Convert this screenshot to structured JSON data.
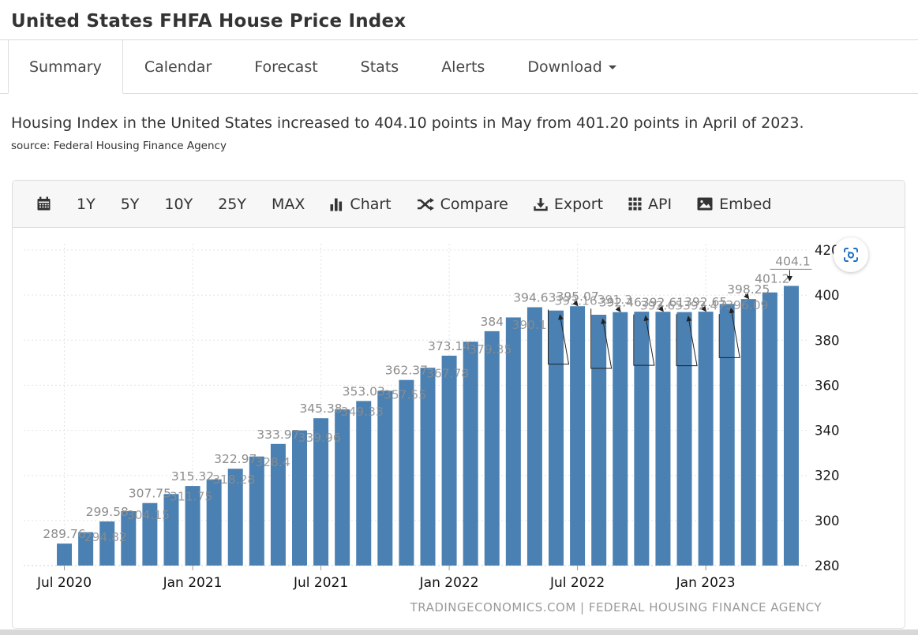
{
  "header": {
    "title": "United States FHFA House Price Index"
  },
  "tabs": {
    "items": [
      {
        "label": "Summary",
        "active": true
      },
      {
        "label": "Calendar"
      },
      {
        "label": "Forecast"
      },
      {
        "label": "Stats"
      },
      {
        "label": "Alerts"
      },
      {
        "label": "Download",
        "caret": true
      }
    ]
  },
  "summary": {
    "description": "Housing Index in the United States increased to 404.10 points in May from 401.20 points in April of 2023.",
    "source_label": "source:",
    "source_name": "Federal Housing Finance Agency"
  },
  "toolbar": {
    "items": [
      {
        "name": "calendar",
        "icon": "calendar-icon",
        "label": ""
      },
      {
        "name": "range-1y",
        "label": "1Y"
      },
      {
        "name": "range-5y",
        "label": "5Y"
      },
      {
        "name": "range-10y",
        "label": "10Y"
      },
      {
        "name": "range-25y",
        "label": "25Y"
      },
      {
        "name": "range-max",
        "label": "MAX"
      },
      {
        "name": "chart",
        "icon": "bar-chart-icon",
        "label": "Chart"
      },
      {
        "name": "compare",
        "icon": "shuffle-icon",
        "label": "Compare"
      },
      {
        "name": "export",
        "icon": "download-icon",
        "label": "Export"
      },
      {
        "name": "api",
        "icon": "grid-icon",
        "label": "API"
      },
      {
        "name": "embed",
        "icon": "image-icon",
        "label": "Embed"
      }
    ]
  },
  "chart_data": {
    "type": "bar",
    "title": "United States FHFA House Price Index",
    "unit": "points",
    "categories": [
      "Jul 2020",
      "Aug 2020",
      "Sep 2020",
      "Oct 2020",
      "Nov 2020",
      "Dec 2020",
      "Jan 2021",
      "Feb 2021",
      "Mar 2021",
      "Apr 2021",
      "May 2021",
      "Jun 2021",
      "Jul 2021",
      "Aug 2021",
      "Sep 2021",
      "Oct 2021",
      "Nov 2021",
      "Dec 2021",
      "Jan 2022",
      "Feb 2022",
      "Mar 2022",
      "Apr 2022",
      "May 2022",
      "Jun 2022",
      "Jul 2022",
      "Aug 2022",
      "Sep 2022",
      "Oct 2022",
      "Nov 2022",
      "Dec 2022",
      "Jan 2023",
      "Feb 2023",
      "Mar 2023",
      "Apr 2023",
      "May 2023"
    ],
    "values": [
      289.76,
      294.82,
      299.58,
      304.15,
      307.75,
      311.75,
      315.32,
      318.28,
      322.97,
      328.4,
      333.97,
      339.96,
      345.38,
      349.33,
      353.03,
      357.55,
      362.37,
      367.78,
      373.14,
      379.35,
      384,
      390.1,
      394.63,
      393.16,
      395.07,
      391.3,
      392.46,
      392.65,
      392.61,
      392.47,
      392.65,
      396.09,
      398.25,
      401.2,
      404.1
    ],
    "ylim": [
      280,
      420
    ],
    "yticks": [
      280,
      300,
      320,
      340,
      360,
      380,
      400,
      420
    ],
    "xticks": [
      "Jul 2020",
      "Jan 2021",
      "Jul 2021",
      "Jan 2022",
      "Jul 2022",
      "Jan 2023"
    ],
    "xtick_indices": [
      0,
      6,
      12,
      18,
      24,
      30
    ],
    "grid": "dotted",
    "bar_color": "#4a80b2",
    "label_color": "#8d8d8d",
    "footer": "TRADINGECONOMICS.COM | FEDERAL HOUSING FINANCE AGENCY"
  }
}
